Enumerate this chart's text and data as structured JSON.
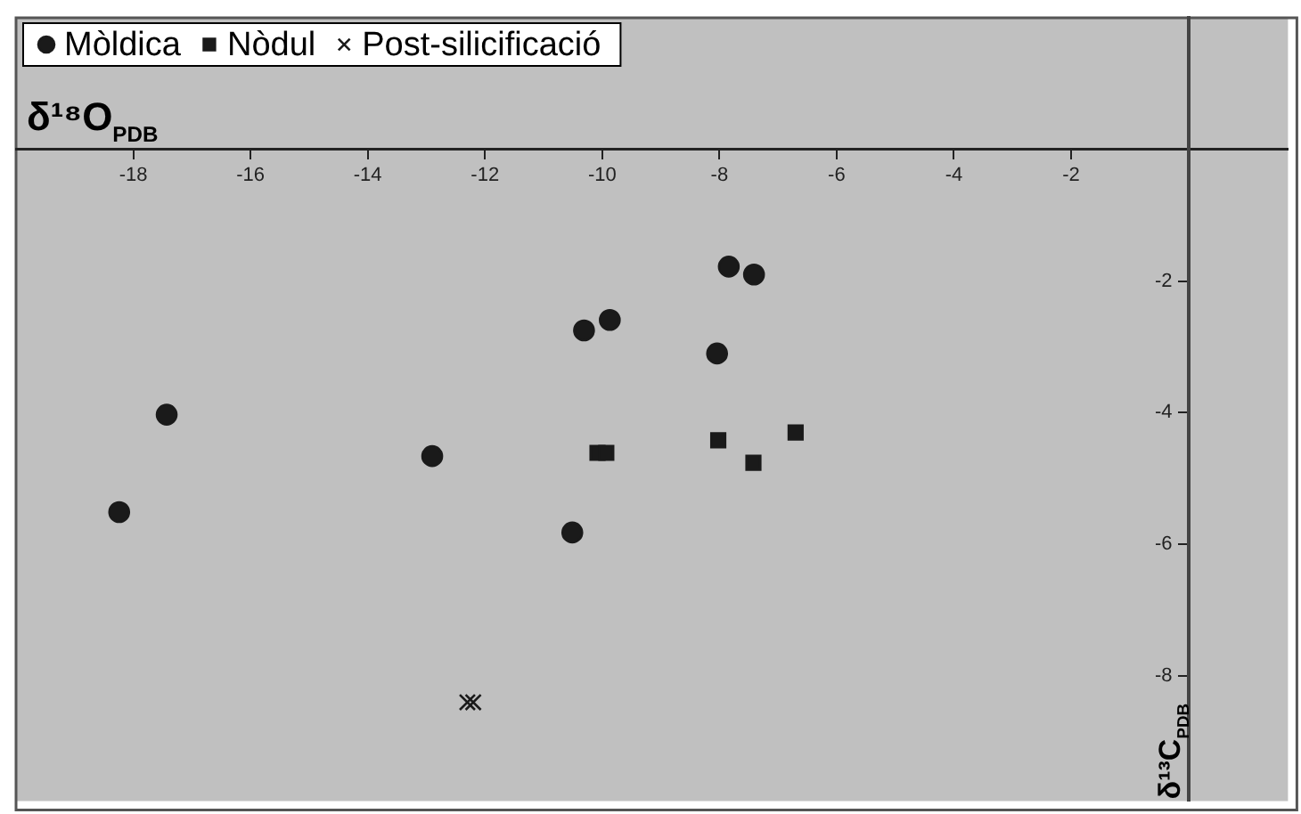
{
  "chart_data": {
    "type": "scatter",
    "xlabel": "δ¹⁸O$_{PDB}$",
    "ylabel": "δ¹³C$_{PDB}$",
    "xlim": [
      -20,
      1.7
    ],
    "ylim": [
      -9.9,
      2
    ],
    "xticks": [
      -18,
      -16,
      -14,
      -12,
      -10,
      -8,
      -6,
      -4,
      -2
    ],
    "yticks": [
      -2,
      -4,
      -6,
      -8
    ],
    "grid": false,
    "legend": "top left",
    "series": [
      {
        "name": "Mòldica",
        "color": "#1a1a1a",
        "marker": "circle",
        "x": [
          -17.43,
          -18.24,
          -12.9,
          -10.31,
          -9.87,
          -7.84,
          -7.41,
          -8.04,
          -10.51
        ],
        "values": [
          -4.03,
          -5.51,
          -4.66,
          -2.75,
          -2.59,
          -1.78,
          -1.9,
          -3.1,
          -5.82
        ]
      },
      {
        "name": "Nòdul",
        "color": "#1a1a1a",
        "marker": "square",
        "x": [
          -10.08,
          -9.93,
          -8.02,
          -7.42,
          -6.7
        ],
        "values": [
          -4.61,
          -4.61,
          -4.42,
          -4.76,
          -4.3
        ]
      },
      {
        "name": "Post-silicificació",
        "color": "#1a1a1a",
        "marker": "cross",
        "x": [
          -12.3,
          -12.2
        ],
        "values": [
          -8.4,
          -8.4
        ]
      }
    ]
  }
}
